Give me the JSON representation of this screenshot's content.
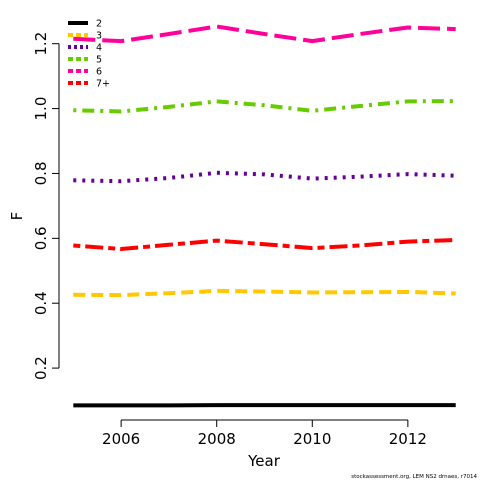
{
  "chart_data": {
    "type": "line",
    "xlabel": "Year",
    "ylabel": "F",
    "xlim": [
      2004.7,
      2013.3
    ],
    "ylim": [
      0.04,
      1.31
    ],
    "x_ticks": [
      2006,
      2008,
      2010,
      2012
    ],
    "x_tick_labels": [
      "2006",
      "2008",
      "2010",
      "2012"
    ],
    "y_ticks": [
      0.2,
      0.4,
      0.6,
      0.8,
      1.0,
      1.2
    ],
    "y_tick_labels": [
      "0.2",
      "0.4",
      "0.6",
      "0.8",
      "1.0",
      "1.2"
    ],
    "grid": false,
    "legend_position": "top-left",
    "x": [
      2005,
      2006,
      2007,
      2008,
      2009,
      2010,
      2011,
      2012,
      2013
    ],
    "series": [
      {
        "name": "2",
        "color": "#000000",
        "dash": "solid",
        "values": [
          0.085,
          0.085,
          0.085,
          0.086,
          0.086,
          0.086,
          0.086,
          0.086,
          0.086
        ]
      },
      {
        "name": "3",
        "color": "#FFC800",
        "dash": "dashed",
        "values": [
          0.426,
          0.425,
          0.431,
          0.438,
          0.436,
          0.433,
          0.434,
          0.435,
          0.43
        ]
      },
      {
        "name": "4",
        "color": "#660099",
        "dash": "dotted",
        "values": [
          0.779,
          0.776,
          0.786,
          0.802,
          0.797,
          0.784,
          0.79,
          0.798,
          0.793
        ]
      },
      {
        "name": "5",
        "color": "#66CC00",
        "dash": "dotdash",
        "values": [
          0.995,
          0.991,
          1.005,
          1.022,
          1.01,
          0.993,
          1.008,
          1.022,
          1.023
        ]
      },
      {
        "name": "6",
        "color": "#FF0099",
        "dash": "longdash",
        "values": [
          1.215,
          1.208,
          1.23,
          1.253,
          1.23,
          1.208,
          1.23,
          1.25,
          1.245
        ]
      },
      {
        "name": "7+",
        "color": "#FF0000",
        "dash": "twodash",
        "values": [
          0.578,
          0.567,
          0.58,
          0.593,
          0.582,
          0.57,
          0.578,
          0.59,
          0.595
        ]
      }
    ]
  },
  "footnote": "stockassessment.org, LEM NS2 drnaes, r7014"
}
